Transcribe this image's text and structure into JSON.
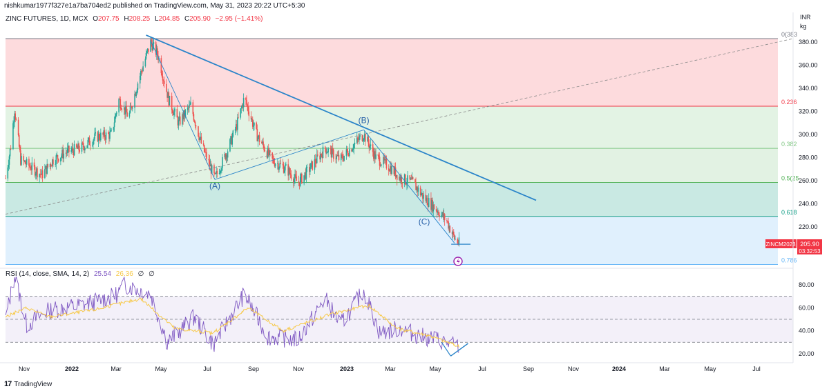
{
  "header": {
    "published_by": "nishkumar1977f327e1a7ba704ed2 published on TradingView.com, May 31, 2023 20:22 UTC+5:30"
  },
  "legend": {
    "symbol": "ZINC FUTURES, 1D, MCX",
    "open_label": "O",
    "open": "207.75",
    "high_label": "H",
    "high": "208.25",
    "low_label": "L",
    "low": "204.85",
    "close_label": "C",
    "close": "205.90",
    "change": "−2.95 (−1.41%)"
  },
  "rsi_legend": {
    "label": "RSI (14, close, SMA, 14, 2)",
    "rsi": "25.54",
    "ma": "26.36",
    "extra1": "∅",
    "extra2": "∅"
  },
  "price_axis": {
    "currency": "INR",
    "unit": "kg",
    "last_symbol": "ZINCM2023",
    "last_price": "205.90",
    "countdown": "03:32:53"
  },
  "fib_levels": [
    {
      "label": "0(383",
      "value": 383,
      "color": "#787b86"
    },
    {
      "label": "0.236",
      "value": 324.5,
      "color": "#f23645"
    },
    {
      "label": "0.382",
      "value": 288,
      "color": "#81c784"
    },
    {
      "label": "0.5(25",
      "value": 258.5,
      "color": "#4caf50"
    },
    {
      "label": "0.618",
      "value": 229,
      "color": "#089981"
    },
    {
      "label": "0.786",
      "value": 187.5,
      "color": "#64b5f6"
    }
  ],
  "wave_labels": [
    {
      "text": "(A)",
      "date": "2022-07-12",
      "price": 253
    },
    {
      "text": "(B)",
      "date": "2023-01-25",
      "price": 310
    },
    {
      "text": "(C)",
      "date": "2023-04-15",
      "price": 222
    }
  ],
  "footer": {
    "brand": "TradingView",
    "logo_text": "17"
  },
  "chart_data": [
    {
      "type": "candlestick",
      "title": "ZINC FUTURES, 1D, MCX",
      "x_tick_labels": [
        "Nov",
        "2022",
        "Mar",
        "May",
        "Jul",
        "Sep",
        "Nov",
        "2023",
        "Mar",
        "May",
        "Jul",
        "Sep",
        "Nov",
        "2024",
        "Mar",
        "May",
        "Jul"
      ],
      "y_tick_labels": [
        "220.00",
        "240.00",
        "260.00",
        "280.00",
        "300.00",
        "320.00",
        "340.00",
        "360.00",
        "380.00"
      ],
      "ylim": [
        180,
        390
      ],
      "x_range": [
        "2021-10-08",
        "2024-08-15"
      ],
      "close_series": [
        {
          "date": "2021-10-08",
          "value": 262
        },
        {
          "date": "2021-10-15",
          "value": 290
        },
        {
          "date": "2021-10-20",
          "value": 322
        },
        {
          "date": "2021-10-28",
          "value": 278
        },
        {
          "date": "2021-11-10",
          "value": 272
        },
        {
          "date": "2021-11-25",
          "value": 265
        },
        {
          "date": "2021-12-10",
          "value": 278
        },
        {
          "date": "2021-12-28",
          "value": 285
        },
        {
          "date": "2022-01-15",
          "value": 288
        },
        {
          "date": "2022-02-05",
          "value": 298
        },
        {
          "date": "2022-02-25",
          "value": 300
        },
        {
          "date": "2022-03-07",
          "value": 330
        },
        {
          "date": "2022-03-20",
          "value": 315
        },
        {
          "date": "2022-04-01",
          "value": 345
        },
        {
          "date": "2022-04-18",
          "value": 380
        },
        {
          "date": "2022-04-28",
          "value": 368
        },
        {
          "date": "2022-05-12",
          "value": 330
        },
        {
          "date": "2022-05-25",
          "value": 310
        },
        {
          "date": "2022-06-10",
          "value": 325
        },
        {
          "date": "2022-06-25",
          "value": 290
        },
        {
          "date": "2022-07-12",
          "value": 262
        },
        {
          "date": "2022-07-28",
          "value": 285
        },
        {
          "date": "2022-08-10",
          "value": 308
        },
        {
          "date": "2022-08-20",
          "value": 332
        },
        {
          "date": "2022-09-05",
          "value": 300
        },
        {
          "date": "2022-09-25",
          "value": 278
        },
        {
          "date": "2022-10-15",
          "value": 270
        },
        {
          "date": "2022-10-30",
          "value": 258
        },
        {
          "date": "2022-11-20",
          "value": 275
        },
        {
          "date": "2022-12-05",
          "value": 288
        },
        {
          "date": "2022-12-25",
          "value": 278
        },
        {
          "date": "2023-01-10",
          "value": 290
        },
        {
          "date": "2023-01-25",
          "value": 300
        },
        {
          "date": "2023-02-10",
          "value": 280
        },
        {
          "date": "2023-02-28",
          "value": 272
        },
        {
          "date": "2023-03-15",
          "value": 262
        },
        {
          "date": "2023-03-31",
          "value": 258
        },
        {
          "date": "2023-04-15",
          "value": 245
        },
        {
          "date": "2023-04-30",
          "value": 236
        },
        {
          "date": "2023-05-15",
          "value": 225
        },
        {
          "date": "2023-05-25",
          "value": 210
        },
        {
          "date": "2023-05-31",
          "value": 205.9
        }
      ],
      "trendlines": [
        {
          "name": "downtrend",
          "from": {
            "date": "2022-04-12",
            "price": 386
          },
          "to": {
            "date": "2023-09-10",
            "price": 243
          }
        },
        {
          "name": "channel-dashed",
          "from": {
            "date": "2021-10-08",
            "price": 231
          },
          "to": {
            "date": "2024-08-15",
            "price": 383
          }
        },
        {
          "name": "wave-A",
          "from": {
            "date": "2022-04-18",
            "price": 381
          },
          "to": {
            "date": "2022-07-12",
            "price": 261
          }
        },
        {
          "name": "wave-B",
          "from": {
            "date": "2022-07-12",
            "price": 261
          },
          "to": {
            "date": "2023-01-25",
            "price": 304
          }
        },
        {
          "name": "wave-C",
          "from": {
            "date": "2023-01-25",
            "price": 304
          },
          "to": {
            "date": "2023-05-25",
            "price": 206
          }
        }
      ]
    },
    {
      "type": "line",
      "title": "RSI (14, close, SMA, 14, 2)",
      "y_tick_labels": [
        "20.00",
        "40.00",
        "60.00",
        "80.00"
      ],
      "ylim": [
        14,
        92
      ],
      "bands": [
        30,
        50,
        70
      ],
      "series": [
        {
          "name": "RSI",
          "color": "#7e57c2",
          "values": [
            {
              "date": "2021-10-08",
              "value": 50
            },
            {
              "date": "2021-10-20",
              "value": 88
            },
            {
              "date": "2021-11-05",
              "value": 45
            },
            {
              "date": "2021-12-05",
              "value": 58
            },
            {
              "date": "2022-01-15",
              "value": 62
            },
            {
              "date": "2022-03-01",
              "value": 70
            },
            {
              "date": "2022-03-15",
              "value": 80
            },
            {
              "date": "2022-04-18",
              "value": 72
            },
            {
              "date": "2022-05-10",
              "value": 30
            },
            {
              "date": "2022-06-15",
              "value": 52
            },
            {
              "date": "2022-07-10",
              "value": 28
            },
            {
              "date": "2022-08-20",
              "value": 72
            },
            {
              "date": "2022-09-20",
              "value": 35
            },
            {
              "date": "2022-10-30",
              "value": 32
            },
            {
              "date": "2022-12-05",
              "value": 68
            },
            {
              "date": "2022-12-25",
              "value": 45
            },
            {
              "date": "2023-01-25",
              "value": 75
            },
            {
              "date": "2023-02-15",
              "value": 38
            },
            {
              "date": "2023-03-15",
              "value": 42
            },
            {
              "date": "2023-04-10",
              "value": 35
            },
            {
              "date": "2023-05-05",
              "value": 32
            },
            {
              "date": "2023-05-31",
              "value": 25.54
            }
          ]
        },
        {
          "name": "RSI-based MA",
          "color": "#f7c948",
          "values": [
            {
              "date": "2021-10-08",
              "value": 52
            },
            {
              "date": "2021-11-05",
              "value": 60
            },
            {
              "date": "2021-12-05",
              "value": 52
            },
            {
              "date": "2022-02-01",
              "value": 58
            },
            {
              "date": "2022-04-05",
              "value": 68
            },
            {
              "date": "2022-05-20",
              "value": 42
            },
            {
              "date": "2022-07-10",
              "value": 38
            },
            {
              "date": "2022-08-25",
              "value": 60
            },
            {
              "date": "2022-10-10",
              "value": 40
            },
            {
              "date": "2022-12-15",
              "value": 55
            },
            {
              "date": "2023-02-01",
              "value": 62
            },
            {
              "date": "2023-03-10",
              "value": 42
            },
            {
              "date": "2023-04-20",
              "value": 36
            },
            {
              "date": "2023-05-31",
              "value": 26.36
            }
          ]
        }
      ],
      "trendline": {
        "from": {
          "date": "2023-05-20",
          "value": 18
        },
        "to": {
          "date": "2023-06-12",
          "value": 29
        }
      }
    }
  ]
}
